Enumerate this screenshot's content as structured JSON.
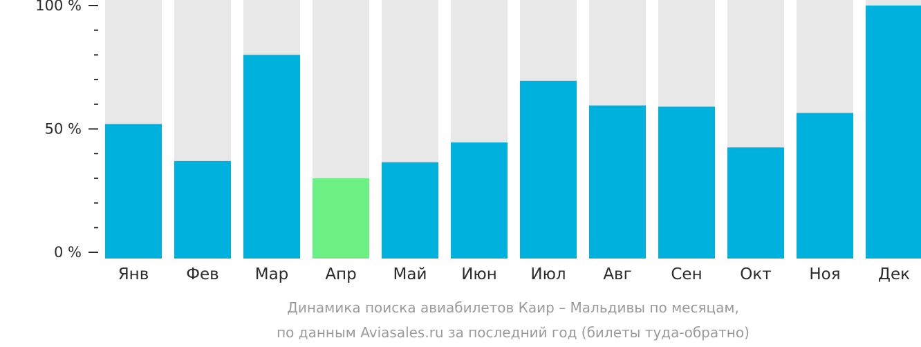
{
  "chart_data": {
    "type": "bar",
    "categories": [
      "Янв",
      "Фев",
      "Мар",
      "Апр",
      "Май",
      "Июн",
      "Июл",
      "Авг",
      "Сен",
      "Окт",
      "Ноя",
      "Дек"
    ],
    "values": [
      52,
      37,
      80,
      30,
      36.5,
      44.5,
      69.5,
      59.5,
      59,
      42.5,
      56.5,
      100
    ],
    "highlight_index": 3,
    "ylim": [
      0,
      100
    ],
    "yticks": [
      {
        "value": 0,
        "label": "0 %"
      },
      {
        "value": 50,
        "label": "50 %"
      },
      {
        "value": 100,
        "label": "100 %"
      }
    ],
    "minor_tick_step": 10,
    "caption_line1": "Динамика поиска авиабилетов Каир – Мальдивы по месяцам,",
    "caption_line2": "по данным Aviasales.ru за последний год (билеты туда-обратно)",
    "colors": {
      "bar": "#00b0dd",
      "highlight": "#6cf083",
      "track": "#e8e8e8",
      "axis": "#2b2b2b",
      "caption": "#9a9a9a"
    }
  }
}
